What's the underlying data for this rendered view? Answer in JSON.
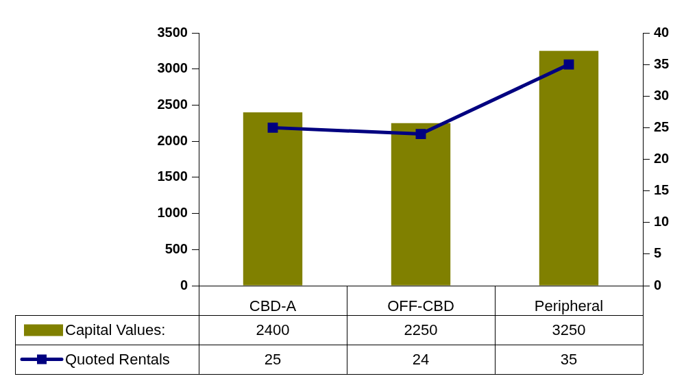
{
  "chart_data": {
    "type": "bar",
    "categories": [
      "CBD-A",
      "OFF-CBD",
      "Peripheral"
    ],
    "series": [
      {
        "name": "Capital Values:",
        "color": "#808000",
        "values": [
          2400,
          2250,
          3250
        ]
      },
      {
        "name": "Quoted Rentals",
        "type": "line",
        "axis": "y2",
        "color": "#000080",
        "values": [
          25,
          24,
          35
        ]
      }
    ],
    "ylim": [
      0,
      3500
    ],
    "yticks": [
      0,
      500,
      1000,
      1500,
      2000,
      2500,
      3000,
      3500
    ],
    "y2lim": [
      0,
      40
    ],
    "y2ticks": [
      0,
      5,
      10,
      15,
      20,
      25,
      30,
      35,
      40
    ],
    "grid": false,
    "legend": "bottom left",
    "marker": "square",
    "line_style": "solid",
    "data_labels": true
  }
}
